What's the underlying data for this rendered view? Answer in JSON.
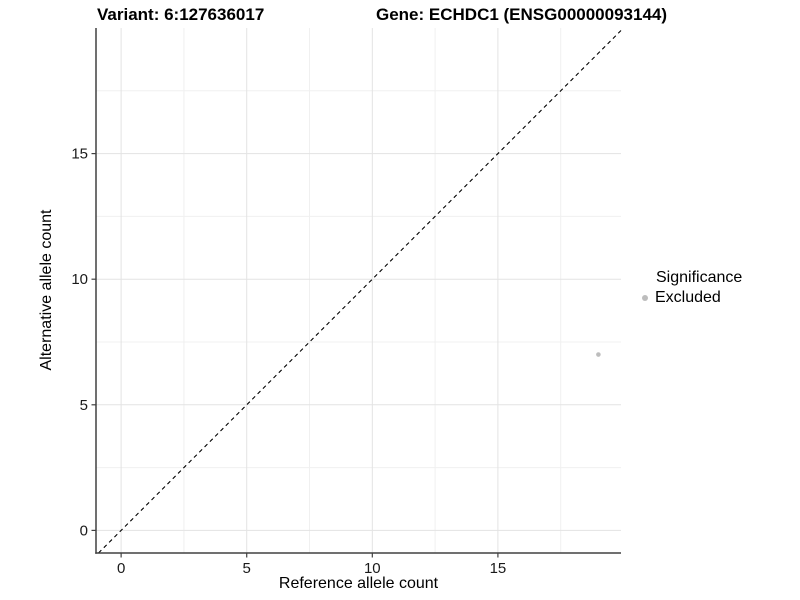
{
  "header": {
    "title_left": "Variant: 6:127636017",
    "title_right": "Gene: ECHDC1 (ENSG00000093144)"
  },
  "chart_data": {
    "type": "scatter",
    "xlabel": "Reference allele count",
    "ylabel": "Alternative allele count",
    "xlim": [
      -1.0,
      19.9
    ],
    "ylim": [
      -0.9,
      20.0
    ],
    "xticks": [
      0,
      5,
      10,
      15
    ],
    "yticks": [
      0,
      5,
      10,
      15
    ],
    "minor_step": 2.5,
    "grid": "major+minor",
    "legend_position": "right",
    "identity_line": {
      "slope": 1,
      "intercept": 0,
      "style": "dashed",
      "color": "#000000"
    },
    "series": [
      {
        "name": "Excluded",
        "color": "#bdbdbd",
        "point_radius": 2.3,
        "points": [
          {
            "x": 19,
            "y": 7
          }
        ]
      }
    ],
    "legend": {
      "title": "Significance"
    }
  },
  "colors": {
    "axis_line": "#404040",
    "grid_major": "#e3e3e3",
    "grid_minor": "#f0f0f0",
    "tick_label": "#1a1a1a",
    "background": "#ffffff"
  }
}
